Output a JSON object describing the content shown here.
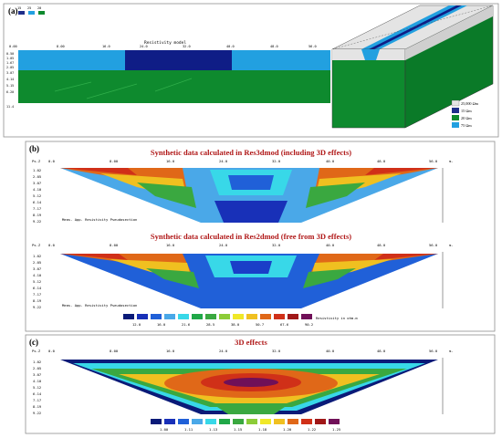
{
  "panel_a": {
    "label": "(a)",
    "model_title": "Resistivity model",
    "legend_small": [
      "15",
      "25",
      "20"
    ],
    "x_ticks": [
      "0.00",
      "8.00",
      "16.0",
      "24.0",
      "32.0",
      "40.0",
      "48.0",
      "56.0"
    ],
    "depth_ticks": [
      "0.50",
      "1.05",
      "1.67",
      "2.05",
      "3.07",
      "4.14",
      "5.15",
      "6.20",
      "11.4"
    ],
    "block_legend": [
      {
        "color": "#e4e4e4",
        "label": "25,000 Ωm"
      },
      {
        "color": "#1e2e8a",
        "label": "15 Ωm"
      },
      {
        "color": "#0e8a2e",
        "label": "20 Ωm"
      },
      {
        "color": "#22a0e0",
        "label": "75 Ωm"
      }
    ]
  },
  "panel_b": {
    "label": "(b)",
    "title_top": "Synthetic data calculated in Res3dmod (including 3D effects)",
    "title_bottom": "Synthetic data calculated in Res2dmod (free from 3D effects)",
    "axis_label": "Ps.Z",
    "unit": "m.",
    "x_ticks": [
      "0.0",
      "8.00",
      "16.0",
      "24.0",
      "32.0",
      "40.0",
      "48.0",
      "56.0"
    ],
    "depth_ticks": [
      "1.02",
      "2.05",
      "3.07",
      "4.10",
      "5.12",
      "6.14",
      "7.17",
      "8.19",
      "9.22"
    ],
    "section_caption": "Meas. App. Resistivity Pseudosection",
    "colorbar_values": [
      "12.0",
      "16.0",
      "21.6",
      "28.5",
      "38.0",
      "50.7",
      "67.6",
      "90.2"
    ],
    "colorbar_unit": "Resistivity in ohm.m"
  },
  "panel_c": {
    "label": "(c)",
    "title": "3D effects",
    "axis_label": "Ps.Z",
    "unit": "m.",
    "x_ticks": [
      "0.0",
      "8.00",
      "16.0",
      "24.0",
      "32.0",
      "40.0",
      "48.0",
      "56.0"
    ],
    "depth_ticks": [
      "1.02",
      "2.05",
      "3.07",
      "4.10",
      "5.12",
      "6.14",
      "7.17",
      "8.19",
      "9.22"
    ],
    "colorbar_values": [
      "1.00",
      "1.11",
      "1.13",
      "1.15",
      "1.18",
      "1.20",
      "1.22",
      "1.25"
    ]
  },
  "colors": {
    "title_red": "#b01818",
    "panel_border": "#909090"
  }
}
